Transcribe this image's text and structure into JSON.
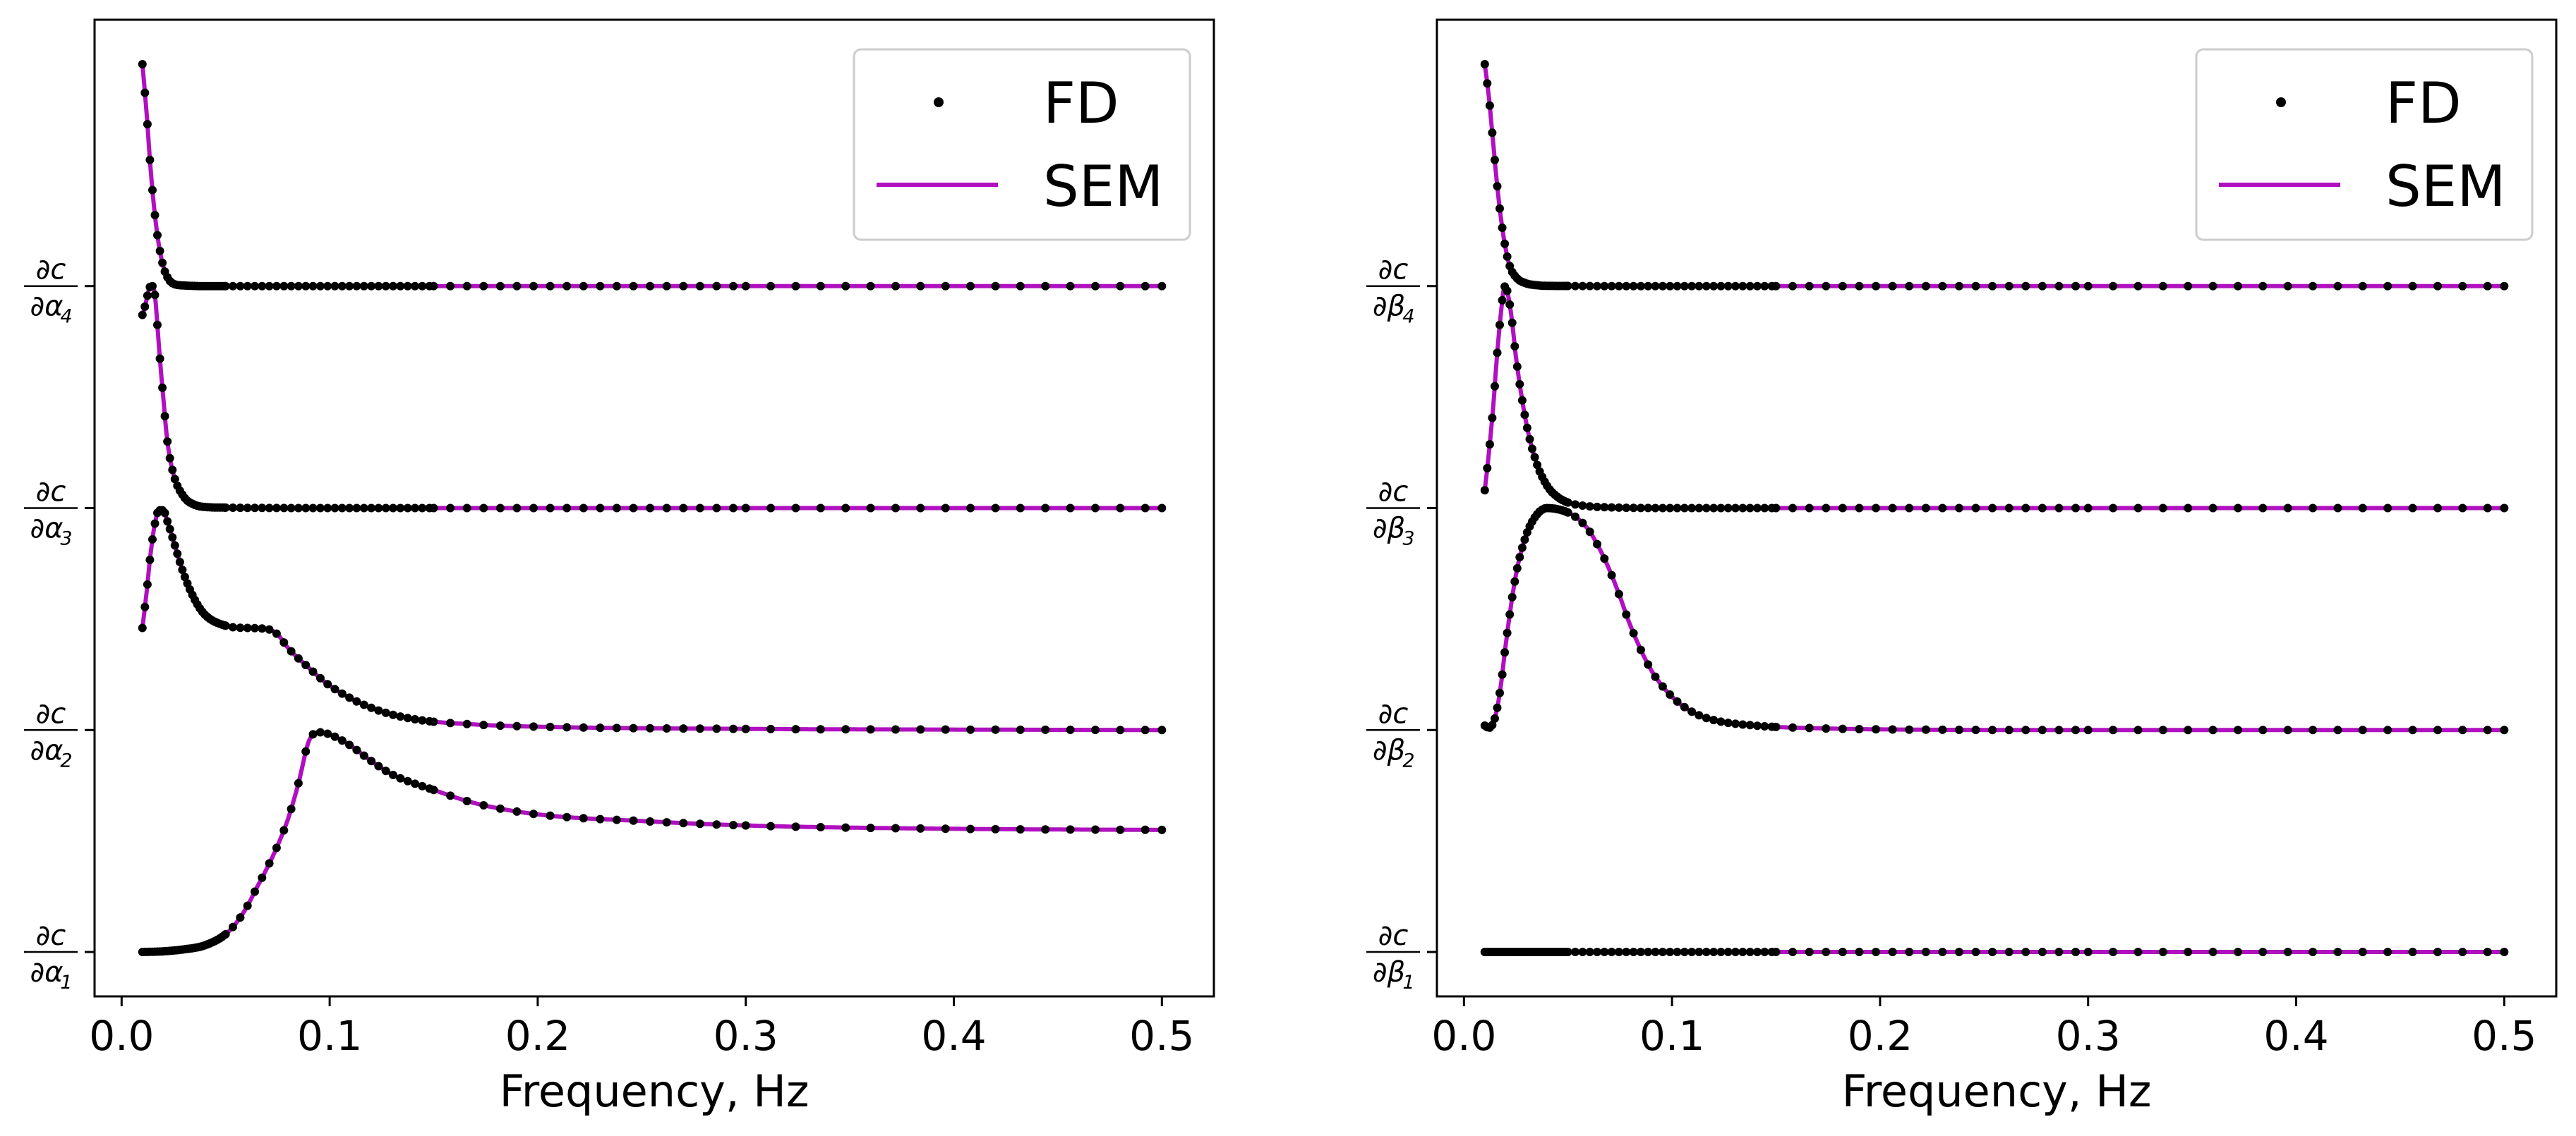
{
  "chart_data": [
    {
      "type": "line",
      "panel": "left",
      "title": "",
      "xlabel": "Frequency, Hz",
      "ylabel": "",
      "xlim": [
        -0.013,
        0.525
      ],
      "ylim": [
        -0.2,
        4.2
      ],
      "x_ticks": [
        "0.0",
        "0.1",
        "0.2",
        "0.3",
        "0.4",
        "0.5"
      ],
      "x_tick_values": [
        0.0,
        0.1,
        0.2,
        0.3,
        0.4,
        0.5
      ],
      "y_ticks": [
        {
          "value": 0,
          "num": "∂c",
          "den": "∂α",
          "sub": "1"
        },
        {
          "value": 1,
          "num": "∂c",
          "den": "∂α",
          "sub": "2"
        },
        {
          "value": 2,
          "num": "∂c",
          "den": "∂α",
          "sub": "3"
        },
        {
          "value": 3,
          "num": "∂c",
          "den": "∂α",
          "sub": "4"
        }
      ],
      "legend": {
        "position": "top-right",
        "entries": [
          "FD",
          "SEM"
        ]
      },
      "series": [
        {
          "name": "∂c/∂α1",
          "offset": 0,
          "points": [
            [
              0.01,
              0.0
            ],
            [
              0.02,
              0.003
            ],
            [
              0.03,
              0.012
            ],
            [
              0.04,
              0.03
            ],
            [
              0.05,
              0.08
            ],
            [
              0.055,
              0.13
            ],
            [
              0.06,
              0.2
            ],
            [
              0.065,
              0.29
            ],
            [
              0.07,
              0.38
            ],
            [
              0.075,
              0.48
            ],
            [
              0.08,
              0.6
            ],
            [
              0.085,
              0.76
            ],
            [
              0.09,
              0.95
            ],
            [
              0.095,
              0.99
            ],
            [
              0.1,
              0.98
            ],
            [
              0.11,
              0.93
            ],
            [
              0.12,
              0.86
            ],
            [
              0.13,
              0.8
            ],
            [
              0.15,
              0.73
            ],
            [
              0.17,
              0.67
            ],
            [
              0.2,
              0.62
            ],
            [
              0.25,
              0.59
            ],
            [
              0.3,
              0.57
            ],
            [
              0.4,
              0.555
            ],
            [
              0.5,
              0.55
            ]
          ]
        },
        {
          "name": "∂c/∂α2",
          "offset": 1,
          "points": [
            [
              0.01,
              1.46
            ],
            [
              0.012,
              1.62
            ],
            [
              0.014,
              1.8
            ],
            [
              0.016,
              1.93
            ],
            [
              0.018,
              1.99
            ],
            [
              0.02,
              1.99
            ],
            [
              0.022,
              1.94
            ],
            [
              0.025,
              1.85
            ],
            [
              0.03,
              1.7
            ],
            [
              0.035,
              1.59
            ],
            [
              0.04,
              1.52
            ],
            [
              0.05,
              1.47
            ],
            [
              0.06,
              1.46
            ],
            [
              0.07,
              1.455
            ],
            [
              0.075,
              1.43
            ],
            [
              0.08,
              1.37
            ],
            [
              0.09,
              1.28
            ],
            [
              0.1,
              1.2
            ],
            [
              0.12,
              1.1
            ],
            [
              0.14,
              1.05
            ],
            [
              0.17,
              1.025
            ],
            [
              0.2,
              1.015
            ],
            [
              0.3,
              1.005
            ],
            [
              0.4,
              1.002
            ],
            [
              0.5,
              1.0
            ]
          ]
        },
        {
          "name": "∂c/∂α3",
          "offset": 2,
          "points": [
            [
              0.01,
              2.87
            ],
            [
              0.011,
              2.9
            ],
            [
              0.012,
              2.94
            ],
            [
              0.013,
              2.98
            ],
            [
              0.014,
              3.0
            ],
            [
              0.015,
              3.0
            ],
            [
              0.016,
              2.96
            ],
            [
              0.017,
              2.85
            ],
            [
              0.018,
              2.72
            ],
            [
              0.02,
              2.5
            ],
            [
              0.022,
              2.3
            ],
            [
              0.025,
              2.15
            ],
            [
              0.03,
              2.05
            ],
            [
              0.035,
              2.015
            ],
            [
              0.04,
              2.005
            ],
            [
              0.05,
              2.002
            ],
            [
              0.1,
              2.0
            ],
            [
              0.2,
              2.0
            ],
            [
              0.3,
              2.0
            ],
            [
              0.4,
              2.0
            ],
            [
              0.5,
              2.0
            ]
          ]
        },
        {
          "name": "∂c/∂α4",
          "offset": 3,
          "points": [
            [
              0.01,
              4.0
            ],
            [
              0.012,
              3.78
            ],
            [
              0.014,
              3.52
            ],
            [
              0.016,
              3.32
            ],
            [
              0.018,
              3.18
            ],
            [
              0.02,
              3.09
            ],
            [
              0.022,
              3.04
            ],
            [
              0.025,
              3.01
            ],
            [
              0.03,
              3.003
            ],
            [
              0.04,
              3.0
            ],
            [
              0.1,
              3.0
            ],
            [
              0.2,
              3.0
            ],
            [
              0.3,
              3.0
            ],
            [
              0.4,
              3.0
            ],
            [
              0.5,
              3.0
            ]
          ]
        }
      ]
    },
    {
      "type": "line",
      "panel": "right",
      "title": "",
      "xlabel": "Frequency, Hz",
      "ylabel": "",
      "xlim": [
        -0.013,
        0.525
      ],
      "ylim": [
        -0.2,
        4.2
      ],
      "x_ticks": [
        "0.0",
        "0.1",
        "0.2",
        "0.3",
        "0.4",
        "0.5"
      ],
      "x_tick_values": [
        0.0,
        0.1,
        0.2,
        0.3,
        0.4,
        0.5
      ],
      "y_ticks": [
        {
          "value": 0,
          "num": "∂c",
          "den": "∂β",
          "sub": "1"
        },
        {
          "value": 1,
          "num": "∂c",
          "den": "∂β",
          "sub": "2"
        },
        {
          "value": 2,
          "num": "∂c",
          "den": "∂β",
          "sub": "3"
        },
        {
          "value": 3,
          "num": "∂c",
          "den": "∂β",
          "sub": "4"
        }
      ],
      "legend": {
        "position": "top-right",
        "entries": [
          "FD",
          "SEM"
        ]
      },
      "series": [
        {
          "name": "∂c/∂β1",
          "offset": 0,
          "points": [
            [
              0.01,
              0.0
            ],
            [
              0.05,
              0.0
            ],
            [
              0.1,
              0.0
            ],
            [
              0.2,
              0.0
            ],
            [
              0.3,
              0.0
            ],
            [
              0.4,
              0.0
            ],
            [
              0.5,
              0.0
            ]
          ]
        },
        {
          "name": "∂c/∂β2",
          "offset": 1,
          "points": [
            [
              0.01,
              1.02
            ],
            [
              0.012,
              1.01
            ],
            [
              0.014,
              1.03
            ],
            [
              0.016,
              1.1
            ],
            [
              0.018,
              1.22
            ],
            [
              0.02,
              1.38
            ],
            [
              0.025,
              1.7
            ],
            [
              0.03,
              1.88
            ],
            [
              0.035,
              1.97
            ],
            [
              0.04,
              2.0
            ],
            [
              0.045,
              1.995
            ],
            [
              0.05,
              1.98
            ],
            [
              0.055,
              1.95
            ],
            [
              0.06,
              1.9
            ],
            [
              0.065,
              1.82
            ],
            [
              0.07,
              1.72
            ],
            [
              0.075,
              1.6
            ],
            [
              0.08,
              1.47
            ],
            [
              0.09,
              1.27
            ],
            [
              0.1,
              1.15
            ],
            [
              0.11,
              1.08
            ],
            [
              0.12,
              1.045
            ],
            [
              0.14,
              1.02
            ],
            [
              0.17,
              1.008
            ],
            [
              0.2,
              1.003
            ],
            [
              0.3,
              1.0
            ],
            [
              0.4,
              1.0
            ],
            [
              0.5,
              1.0
            ]
          ]
        },
        {
          "name": "∂c/∂β3",
          "offset": 2,
          "points": [
            [
              0.01,
              2.08
            ],
            [
              0.012,
              2.25
            ],
            [
              0.014,
              2.45
            ],
            [
              0.016,
              2.7
            ],
            [
              0.018,
              2.9
            ],
            [
              0.019,
              2.98
            ],
            [
              0.02,
              3.0
            ],
            [
              0.021,
              2.97
            ],
            [
              0.023,
              2.85
            ],
            [
              0.025,
              2.68
            ],
            [
              0.03,
              2.38
            ],
            [
              0.035,
              2.2
            ],
            [
              0.04,
              2.1
            ],
            [
              0.045,
              2.05
            ],
            [
              0.05,
              2.025
            ],
            [
              0.06,
              2.008
            ],
            [
              0.07,
              2.003
            ],
            [
              0.1,
              2.0
            ],
            [
              0.2,
              2.0
            ],
            [
              0.3,
              2.0
            ],
            [
              0.4,
              2.0
            ],
            [
              0.5,
              2.0
            ]
          ]
        },
        {
          "name": "∂c/∂β4",
          "offset": 3,
          "points": [
            [
              0.01,
              4.0
            ],
            [
              0.012,
              3.85
            ],
            [
              0.014,
              3.65
            ],
            [
              0.016,
              3.45
            ],
            [
              0.018,
              3.29
            ],
            [
              0.02,
              3.17
            ],
            [
              0.022,
              3.09
            ],
            [
              0.025,
              3.04
            ],
            [
              0.03,
              3.012
            ],
            [
              0.035,
              3.004
            ],
            [
              0.04,
              3.001
            ],
            [
              0.1,
              3.0
            ],
            [
              0.2,
              3.0
            ],
            [
              0.3,
              3.0
            ],
            [
              0.4,
              3.0
            ],
            [
              0.5,
              3.0
            ]
          ]
        }
      ]
    }
  ],
  "colors": {
    "sem_line": "#b010c0",
    "fd_marker": "#000000",
    "axes": "#000000",
    "legend_border": "#cccccc"
  }
}
